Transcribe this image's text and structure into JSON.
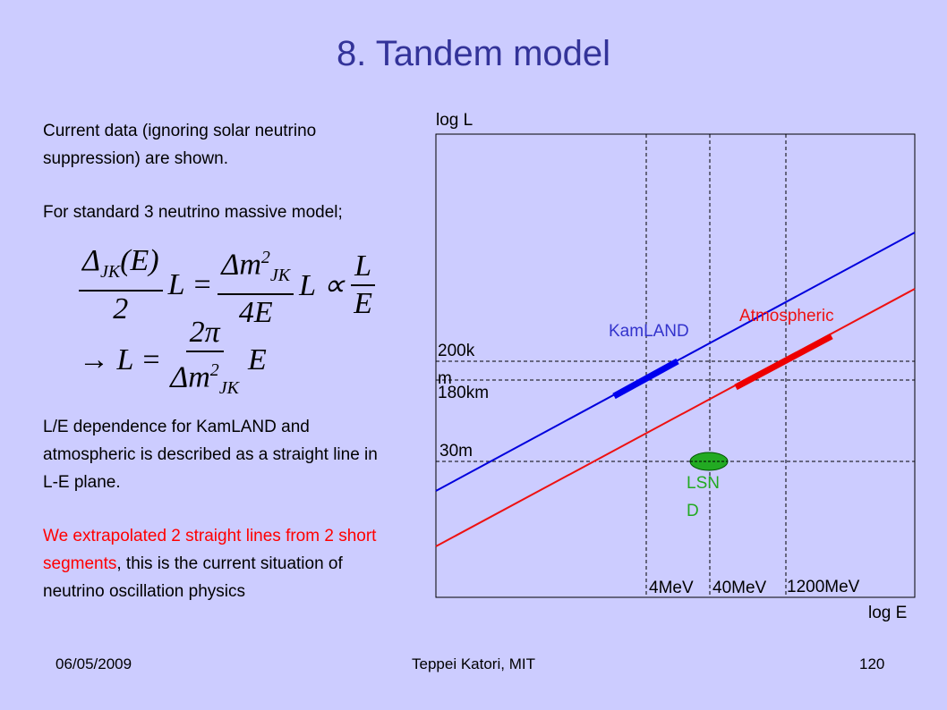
{
  "title": "8. Tandem model",
  "body": {
    "p1": "Current data (ignoring solar neutrino suppression) are shown.",
    "p2": "For standard 3 neutrino massive model;",
    "eq1": {
      "num1": "Δ",
      "num1_sub": "JK",
      "num1_rest": "(E)",
      "den1": "2",
      "mid1": "L =",
      "num2": "Δm",
      "num2_sup": "2",
      "num2_sub": "JK",
      "den2": "4E",
      "mid2": "L ∝",
      "num3": "L",
      "den3": "E"
    },
    "eq2": {
      "lead": "→ L =",
      "num": "2π",
      "den": "Δm",
      "den_sup": "2",
      "den_sub": "JK",
      "tail": "E"
    },
    "p3": "L/E dependence for KamLAND and atmospheric is described as a straight line in L-E plane.",
    "p4_red": "We extrapolated 2 straight lines from 2 short segments",
    "p4_black": ", this is the current situation of neutrino oscillation physics"
  },
  "diagram": {
    "y_axis_label": "log L",
    "x_axis_label": "log E",
    "kamland": "KamLAND",
    "atmospheric": "Atmospheric",
    "lsnd": "LSND",
    "l_labels": [
      "200km",
      "180km",
      "30m"
    ],
    "e_labels": [
      "4MeV",
      "40MeV",
      "1200MeV"
    ]
  },
  "footer": {
    "date": "06/05/2009",
    "author": "Teppei Katori, MIT",
    "page": "120"
  }
}
